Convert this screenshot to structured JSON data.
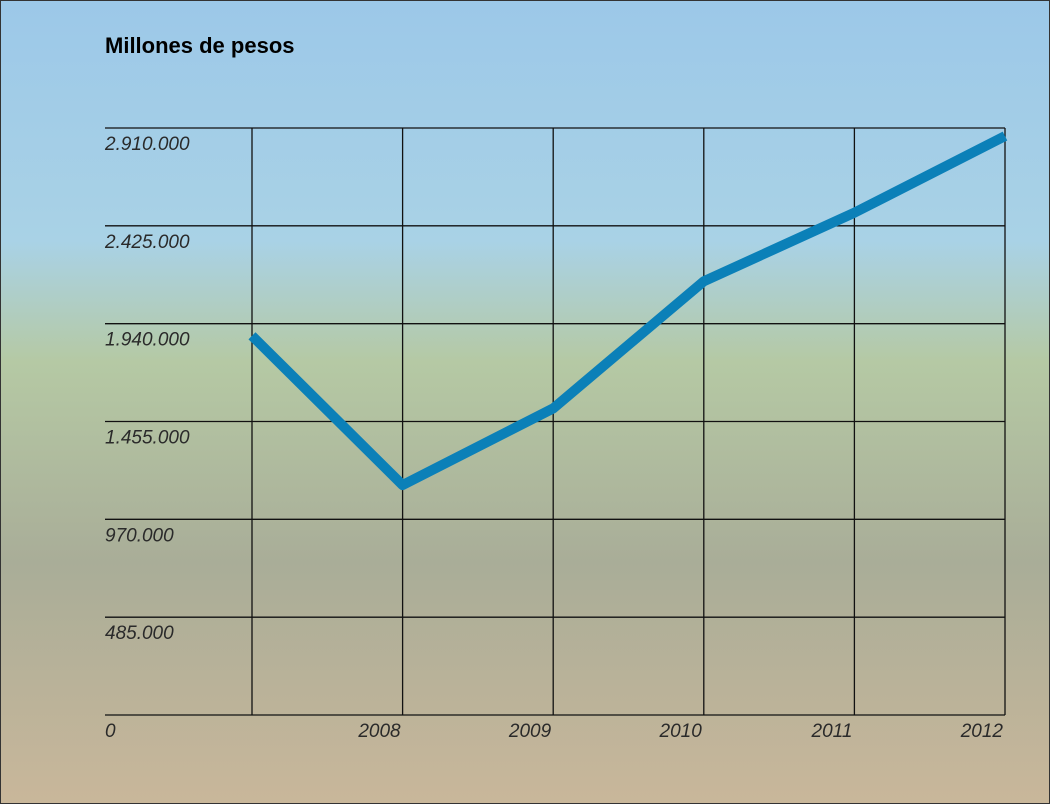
{
  "chart_data": {
    "type": "line",
    "title": "Millones de pesos",
    "categories": [
      null,
      "2008",
      "2009",
      "2010",
      "2011",
      "2012"
    ],
    "series": [
      {
        "color": "#0b80b8",
        "values": [
          1880000,
          1140000,
          1520000,
          2150000,
          2490000,
          2870000
        ]
      }
    ],
    "ylim": [
      0,
      2910000
    ],
    "yticks": [
      0,
      {
        "value": 485000,
        "label": "485.000"
      },
      {
        "value": 970000,
        "label": "970.000"
      },
      {
        "value": 1455000,
        "label": "1.455.000"
      },
      {
        "value": 1940000,
        "label": "1.940.000"
      },
      {
        "value": 2425000,
        "label": "2.425.000"
      },
      {
        "value": 2910000,
        "label": "2.910.000"
      }
    ],
    "grid": true
  }
}
